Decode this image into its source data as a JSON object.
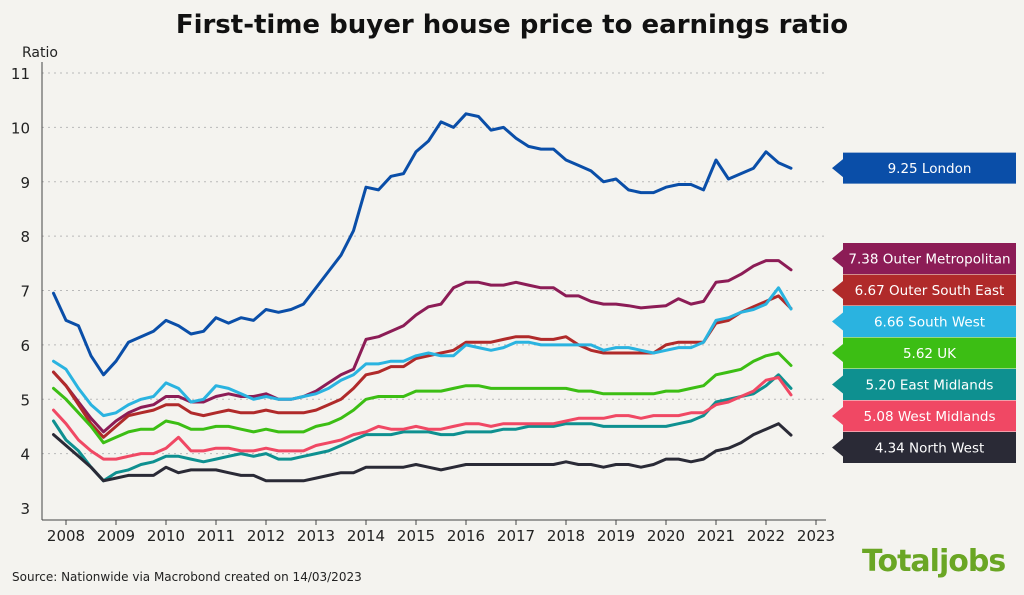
{
  "chart_data": {
    "type": "line",
    "title": "First-time buyer house price to earnings ratio",
    "ylabel": "Ratio",
    "xlabel": "",
    "ylim": [
      3,
      11
    ],
    "xlim": [
      2007.65,
      2023.2
    ],
    "yticks": [
      3,
      4,
      5,
      6,
      7,
      8,
      9,
      10,
      11
    ],
    "xticks": [
      "2008",
      "2009",
      "2010",
      "2011",
      "2012",
      "2013",
      "2014",
      "2015",
      "2016",
      "2017",
      "2018",
      "2019",
      "2020",
      "2021",
      "2022",
      "2023"
    ],
    "grid": "horizontal dotted",
    "legend": "right end labels",
    "x": [
      2007.75,
      2008.0,
      2008.25,
      2008.5,
      2008.75,
      2009.0,
      2009.25,
      2009.5,
      2009.75,
      2010.0,
      2010.25,
      2010.5,
      2010.75,
      2011.0,
      2011.25,
      2011.5,
      2011.75,
      2012.0,
      2012.25,
      2012.5,
      2012.75,
      2013.0,
      2013.25,
      2013.5,
      2013.75,
      2014.0,
      2014.25,
      2014.5,
      2014.75,
      2015.0,
      2015.25,
      2015.5,
      2015.75,
      2016.0,
      2016.25,
      2016.5,
      2016.75,
      2017.0,
      2017.25,
      2017.5,
      2017.75,
      2018.0,
      2018.25,
      2018.5,
      2018.75,
      2019.0,
      2019.25,
      2019.5,
      2019.75,
      2020.0,
      2020.25,
      2020.5,
      2020.75,
      2021.0,
      2021.25,
      2021.5,
      2021.75,
      2022.0,
      2022.25,
      2022.5
    ],
    "series": [
      {
        "name": "London",
        "label": "9.25 London",
        "color": "#0a4ea8",
        "values": [
          6.95,
          6.45,
          6.35,
          5.8,
          5.45,
          5.7,
          6.05,
          6.15,
          6.25,
          6.45,
          6.35,
          6.2,
          6.25,
          6.5,
          6.4,
          6.5,
          6.45,
          6.65,
          6.6,
          6.65,
          6.75,
          7.05,
          7.35,
          7.65,
          8.1,
          8.9,
          8.85,
          9.1,
          9.15,
          9.55,
          9.75,
          10.1,
          10.0,
          10.25,
          10.2,
          9.95,
          10.0,
          9.8,
          9.65,
          9.6,
          9.6,
          9.4,
          9.3,
          9.2,
          9.0,
          9.05,
          8.85,
          8.8,
          8.8,
          8.9,
          8.95,
          8.95,
          8.85,
          9.4,
          9.05,
          9.15,
          9.25,
          9.55,
          9.35,
          9.25
        ]
      },
      {
        "name": "Outer Metropolitan",
        "label": "7.38 Outer Metropolitan",
        "color": "#8c1c56",
        "values": [
          5.5,
          5.25,
          4.95,
          4.65,
          4.4,
          4.6,
          4.75,
          4.85,
          4.9,
          5.05,
          5.05,
          4.95,
          4.95,
          5.05,
          5.1,
          5.05,
          5.05,
          5.1,
          5.0,
          5.0,
          5.05,
          5.15,
          5.3,
          5.45,
          5.55,
          6.1,
          6.15,
          6.25,
          6.35,
          6.55,
          6.7,
          6.75,
          7.05,
          7.15,
          7.15,
          7.1,
          7.1,
          7.15,
          7.1,
          7.05,
          7.05,
          6.9,
          6.9,
          6.8,
          6.75,
          6.75,
          6.72,
          6.68,
          6.7,
          6.72,
          6.85,
          6.75,
          6.8,
          7.15,
          7.18,
          7.3,
          7.45,
          7.55,
          7.55,
          7.38
        ]
      },
      {
        "name": "Outer South East",
        "label": "6.67 Outer South East",
        "color": "#b02a2a",
        "values": [
          5.5,
          5.25,
          4.9,
          4.55,
          4.3,
          4.5,
          4.7,
          4.75,
          4.8,
          4.9,
          4.9,
          4.75,
          4.7,
          4.75,
          4.8,
          4.75,
          4.75,
          4.8,
          4.75,
          4.75,
          4.75,
          4.8,
          4.9,
          5.0,
          5.2,
          5.45,
          5.5,
          5.6,
          5.6,
          5.75,
          5.8,
          5.85,
          5.9,
          6.05,
          6.05,
          6.05,
          6.1,
          6.15,
          6.15,
          6.1,
          6.1,
          6.15,
          6.0,
          5.9,
          5.85,
          5.85,
          5.85,
          5.85,
          5.85,
          6.0,
          6.05,
          6.05,
          6.05,
          6.4,
          6.45,
          6.6,
          6.7,
          6.8,
          6.9,
          6.67
        ]
      },
      {
        "name": "South West",
        "label": "6.66 South West",
        "color": "#2ab3e0",
        "values": [
          5.7,
          5.55,
          5.2,
          4.9,
          4.7,
          4.75,
          4.9,
          5.0,
          5.05,
          5.3,
          5.2,
          4.95,
          5.0,
          5.25,
          5.2,
          5.1,
          5.0,
          5.05,
          5.0,
          5.0,
          5.05,
          5.1,
          5.2,
          5.35,
          5.45,
          5.65,
          5.65,
          5.7,
          5.7,
          5.8,
          5.85,
          5.8,
          5.8,
          6.0,
          5.95,
          5.9,
          5.95,
          6.05,
          6.05,
          6.0,
          6.0,
          6.0,
          6.0,
          6.0,
          5.9,
          5.95,
          5.95,
          5.9,
          5.85,
          5.9,
          5.95,
          5.95,
          6.05,
          6.45,
          6.5,
          6.6,
          6.65,
          6.75,
          7.05,
          6.66
        ]
      },
      {
        "name": "UK",
        "label": "5.62 UK",
        "color": "#3cbe14",
        "values": [
          5.2,
          5.0,
          4.75,
          4.5,
          4.2,
          4.3,
          4.4,
          4.45,
          4.45,
          4.6,
          4.55,
          4.45,
          4.45,
          4.5,
          4.5,
          4.45,
          4.4,
          4.45,
          4.4,
          4.4,
          4.4,
          4.5,
          4.55,
          4.65,
          4.8,
          5.0,
          5.05,
          5.05,
          5.05,
          5.15,
          5.15,
          5.15,
          5.2,
          5.25,
          5.25,
          5.2,
          5.2,
          5.2,
          5.2,
          5.2,
          5.2,
          5.2,
          5.15,
          5.15,
          5.1,
          5.1,
          5.1,
          5.1,
          5.1,
          5.15,
          5.15,
          5.2,
          5.25,
          5.45,
          5.5,
          5.55,
          5.7,
          5.8,
          5.85,
          5.62
        ]
      },
      {
        "name": "East Midlands",
        "label": "5.20 East Midlands",
        "color": "#0e9090",
        "values": [
          4.6,
          4.25,
          4.05,
          3.75,
          3.5,
          3.65,
          3.7,
          3.8,
          3.85,
          3.95,
          3.95,
          3.9,
          3.85,
          3.9,
          3.95,
          4.0,
          3.95,
          4.0,
          3.9,
          3.9,
          3.95,
          4.0,
          4.05,
          4.15,
          4.25,
          4.35,
          4.35,
          4.35,
          4.4,
          4.4,
          4.4,
          4.35,
          4.35,
          4.4,
          4.4,
          4.4,
          4.45,
          4.45,
          4.5,
          4.5,
          4.5,
          4.55,
          4.55,
          4.55,
          4.5,
          4.5,
          4.5,
          4.5,
          4.5,
          4.5,
          4.55,
          4.6,
          4.7,
          4.95,
          5.0,
          5.05,
          5.1,
          5.25,
          5.45,
          5.2
        ]
      },
      {
        "name": "West Midlands",
        "label": "5.08 West Midlands",
        "color": "#f04864",
        "values": [
          4.8,
          4.55,
          4.25,
          4.05,
          3.9,
          3.9,
          3.95,
          4.0,
          4.0,
          4.1,
          4.3,
          4.05,
          4.05,
          4.1,
          4.1,
          4.05,
          4.05,
          4.1,
          4.05,
          4.05,
          4.05,
          4.15,
          4.2,
          4.25,
          4.35,
          4.4,
          4.5,
          4.45,
          4.45,
          4.5,
          4.45,
          4.45,
          4.5,
          4.55,
          4.55,
          4.5,
          4.55,
          4.55,
          4.55,
          4.55,
          4.55,
          4.6,
          4.65,
          4.65,
          4.65,
          4.7,
          4.7,
          4.65,
          4.7,
          4.7,
          4.7,
          4.75,
          4.75,
          4.9,
          4.95,
          5.05,
          5.15,
          5.35,
          5.4,
          5.08
        ]
      },
      {
        "name": "North West",
        "label": "4.34 North West",
        "color": "#2a2a36",
        "values": [
          4.35,
          4.15,
          3.95,
          3.75,
          3.5,
          3.55,
          3.6,
          3.6,
          3.6,
          3.75,
          3.65,
          3.7,
          3.7,
          3.7,
          3.65,
          3.6,
          3.6,
          3.5,
          3.5,
          3.5,
          3.5,
          3.55,
          3.6,
          3.65,
          3.65,
          3.75,
          3.75,
          3.75,
          3.75,
          3.8,
          3.75,
          3.7,
          3.75,
          3.8,
          3.8,
          3.8,
          3.8,
          3.8,
          3.8,
          3.8,
          3.8,
          3.85,
          3.8,
          3.8,
          3.75,
          3.8,
          3.8,
          3.75,
          3.8,
          3.9,
          3.9,
          3.85,
          3.9,
          4.05,
          4.1,
          4.2,
          4.35,
          4.45,
          4.55,
          4.34
        ]
      }
    ]
  },
  "source": "Source: Nationwide via Macrobond created on 14/03/2023",
  "logo": "Totaljobs"
}
